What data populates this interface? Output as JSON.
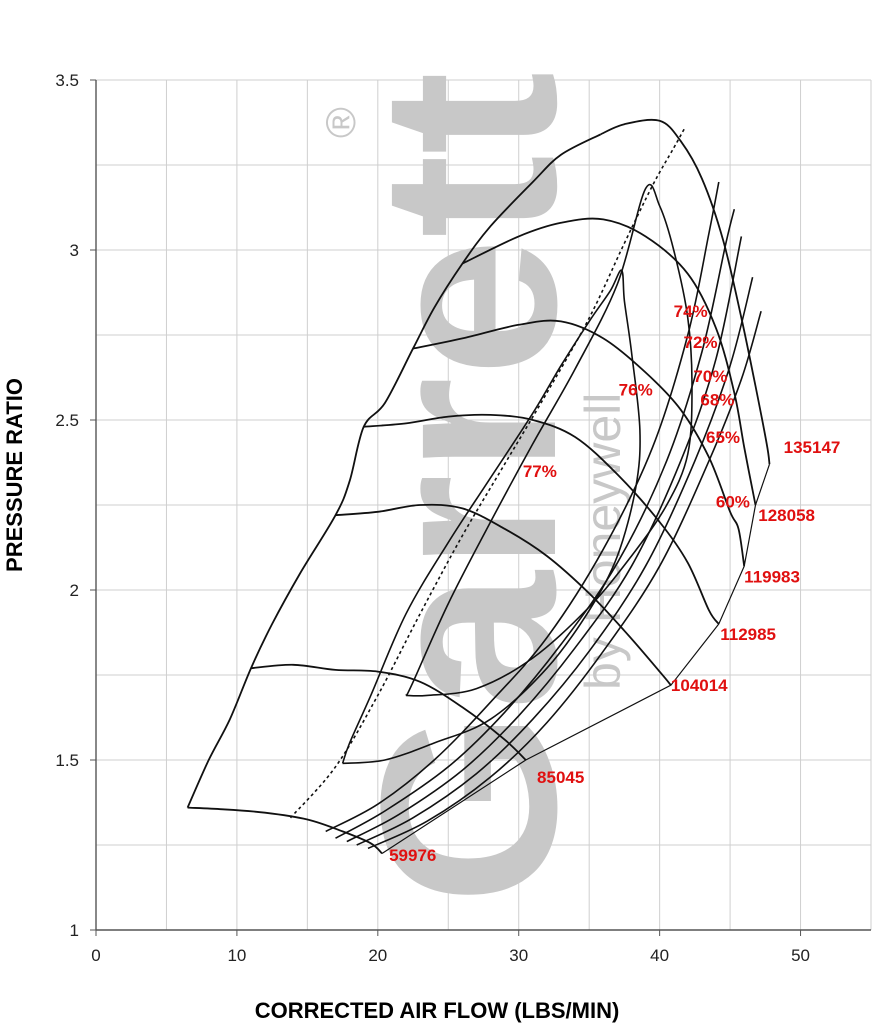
{
  "chart_data": {
    "type": "line",
    "title": "",
    "xlabel": "CORRECTED AIR FLOW (LBS/MIN)",
    "ylabel": "PRESSURE RATIO",
    "xlim": [
      0,
      55
    ],
    "ylim": [
      1,
      3.5
    ],
    "x_ticks": [
      0,
      10,
      20,
      30,
      40,
      50
    ],
    "y_ticks": [
      1,
      1.5,
      2,
      2.5,
      3,
      3.5
    ],
    "x_tick_labels": [
      "0",
      "10",
      "20",
      "30",
      "40",
      "50"
    ],
    "y_tick_labels": [
      "1",
      "1.5",
      "2",
      "2.5",
      "3",
      "3.5"
    ],
    "grid": true,
    "watermark": {
      "brand": "Garrett",
      "sub": "by Honeywell",
      "mark": "®"
    },
    "speed_lines": [
      {
        "name": "59976",
        "points": [
          [
            6.5,
            1.36
          ],
          [
            9,
            1.355
          ],
          [
            12,
            1.345
          ],
          [
            15,
            1.325
          ],
          [
            17.5,
            1.29
          ],
          [
            19.5,
            1.255
          ],
          [
            20.3,
            1.225
          ]
        ]
      },
      {
        "name": "85045",
        "points": [
          [
            11,
            1.77
          ],
          [
            14,
            1.78
          ],
          [
            17,
            1.765
          ],
          [
            20,
            1.76
          ],
          [
            23,
            1.73
          ],
          [
            26,
            1.655
          ],
          [
            29,
            1.56
          ],
          [
            30.5,
            1.5
          ]
        ]
      },
      {
        "name": "104014",
        "points": [
          [
            17,
            2.22
          ],
          [
            20,
            2.23
          ],
          [
            23,
            2.25
          ],
          [
            26,
            2.24
          ],
          [
            29,
            2.18
          ],
          [
            32,
            2.1
          ],
          [
            35,
            1.99
          ],
          [
            37.5,
            1.88
          ],
          [
            40,
            1.76
          ],
          [
            40.8,
            1.72
          ]
        ]
      },
      {
        "name": "112985",
        "points": [
          [
            19,
            2.48
          ],
          [
            22,
            2.49
          ],
          [
            25,
            2.51
          ],
          [
            28,
            2.515
          ],
          [
            31,
            2.5
          ],
          [
            34,
            2.45
          ],
          [
            37,
            2.34
          ],
          [
            40,
            2.2
          ],
          [
            42,
            2.08
          ],
          [
            43.5,
            1.94
          ],
          [
            44.2,
            1.9
          ]
        ]
      },
      {
        "name": "119983",
        "points": [
          [
            22.5,
            2.71
          ],
          [
            26,
            2.74
          ],
          [
            30,
            2.78
          ],
          [
            33,
            2.79
          ],
          [
            36,
            2.74
          ],
          [
            39,
            2.64
          ],
          [
            41.5,
            2.53
          ],
          [
            43.5,
            2.39
          ],
          [
            45,
            2.23
          ],
          [
            45.6,
            2.18
          ],
          [
            46,
            2.07
          ]
        ]
      },
      {
        "name": "128058",
        "points": [
          [
            26,
            2.96
          ],
          [
            30,
            3.04
          ],
          [
            33,
            3.08
          ],
          [
            36,
            3.09
          ],
          [
            39,
            3.04
          ],
          [
            42,
            2.93
          ],
          [
            44,
            2.77
          ],
          [
            45.3,
            2.58
          ],
          [
            46,
            2.42
          ],
          [
            46.8,
            2.25
          ]
        ]
      },
      {
        "name": "135147",
        "points": [
          [
            35.8,
            3.34
          ],
          [
            37.5,
            3.37
          ],
          [
            40,
            3.38
          ],
          [
            41.5,
            3.32
          ],
          [
            43,
            3.21
          ],
          [
            44.5,
            3.03
          ],
          [
            45.8,
            2.8
          ],
          [
            46.8,
            2.6
          ],
          [
            47.6,
            2.43
          ],
          [
            47.8,
            2.37
          ]
        ]
      }
    ],
    "surge_line": [
      [
        6.5,
        1.36
      ],
      [
        8,
        1.5
      ],
      [
        9.5,
        1.62
      ],
      [
        11,
        1.77
      ],
      [
        12.5,
        1.9
      ],
      [
        14.5,
        2.05
      ],
      [
        17,
        2.22
      ],
      [
        18,
        2.32
      ],
      [
        19,
        2.48
      ],
      [
        20.5,
        2.55
      ],
      [
        22.5,
        2.71
      ],
      [
        24,
        2.83
      ],
      [
        26,
        2.96
      ],
      [
        28,
        3.07
      ],
      [
        31,
        3.2
      ],
      [
        33,
        3.28
      ],
      [
        35.8,
        3.34
      ]
    ],
    "choke_ends": [
      [
        20.3,
        1.225
      ],
      [
        30.5,
        1.5
      ],
      [
        40.8,
        1.72
      ],
      [
        44.2,
        1.9
      ],
      [
        46,
        2.07
      ],
      [
        46.8,
        2.25
      ],
      [
        47.8,
        2.37
      ]
    ],
    "efficiency_islands": [
      {
        "name": "77%",
        "dashed": true,
        "points": [
          [
            13.8,
            1.33
          ],
          [
            17,
            1.48
          ],
          [
            20,
            1.69
          ],
          [
            23,
            1.93
          ],
          [
            26,
            2.16
          ],
          [
            29,
            2.37
          ],
          [
            32,
            2.58
          ],
          [
            35,
            2.8
          ],
          [
            37.5,
            3.02
          ],
          [
            39.5,
            3.19
          ],
          [
            41,
            3.3
          ],
          [
            41.8,
            3.36
          ]
        ]
      },
      {
        "name": "76%",
        "dashed": false,
        "points": [
          [
            17.5,
            1.49
          ],
          [
            18,
            1.55
          ],
          [
            19.5,
            1.69
          ],
          [
            22,
            1.93
          ],
          [
            25,
            2.14
          ],
          [
            28,
            2.33
          ],
          [
            31,
            2.52
          ],
          [
            33,
            2.66
          ],
          [
            35,
            2.79
          ],
          [
            36.5,
            2.88
          ],
          [
            37.3,
            2.94
          ],
          [
            37.5,
            2.85
          ],
          [
            38,
            2.7
          ],
          [
            38.6,
            2.47
          ],
          [
            38.3,
            2.3
          ],
          [
            37,
            2.1
          ],
          [
            35,
            1.94
          ],
          [
            32,
            1.77
          ],
          [
            28,
            1.62
          ],
          [
            24,
            1.55
          ],
          [
            20.5,
            1.5
          ],
          [
            17.5,
            1.49
          ]
        ]
      },
      {
        "name": "74%",
        "dashed": false,
        "points": [
          [
            22,
            1.69
          ],
          [
            22.4,
            1.72
          ],
          [
            25,
            1.96
          ],
          [
            28,
            2.2
          ],
          [
            31,
            2.43
          ],
          [
            34,
            2.65
          ],
          [
            37,
            2.9
          ],
          [
            39,
            3.18
          ],
          [
            40,
            3.13
          ],
          [
            41,
            3.0
          ],
          [
            42,
            2.8
          ],
          [
            42.3,
            2.6
          ],
          [
            42,
            2.4
          ],
          [
            40.5,
            2.25
          ],
          [
            38,
            2.1
          ],
          [
            35,
            1.95
          ],
          [
            31,
            1.8
          ],
          [
            27,
            1.71
          ],
          [
            23.5,
            1.69
          ],
          [
            22,
            1.69
          ]
        ]
      },
      {
        "name": "72%",
        "dashed": false,
        "points": [
          [
            16.3,
            1.29
          ],
          [
            20,
            1.37
          ],
          [
            24,
            1.5
          ],
          [
            28,
            1.67
          ],
          [
            32,
            1.86
          ],
          [
            36,
            2.12
          ],
          [
            39.5,
            2.42
          ],
          [
            42,
            2.75
          ],
          [
            43.5,
            3.05
          ],
          [
            44.2,
            3.2
          ]
        ]
      },
      {
        "name": "70%",
        "dashed": false,
        "points": [
          [
            17,
            1.27
          ],
          [
            20.5,
            1.35
          ],
          [
            25,
            1.48
          ],
          [
            29,
            1.64
          ],
          [
            33,
            1.84
          ],
          [
            37,
            2.08
          ],
          [
            40.5,
            2.38
          ],
          [
            43,
            2.7
          ],
          [
            44.7,
            3.02
          ],
          [
            45.3,
            3.12
          ]
        ]
      },
      {
        "name": "68%",
        "dashed": false,
        "points": [
          [
            17.8,
            1.26
          ],
          [
            21.5,
            1.34
          ],
          [
            26,
            1.47
          ],
          [
            30,
            1.63
          ],
          [
            34,
            1.83
          ],
          [
            38,
            2.07
          ],
          [
            41.5,
            2.38
          ],
          [
            44,
            2.68
          ],
          [
            45.8,
            3.04
          ]
        ]
      },
      {
        "name": "65%",
        "dashed": false,
        "points": [
          [
            18.5,
            1.25
          ],
          [
            22.5,
            1.33
          ],
          [
            27,
            1.46
          ],
          [
            31,
            1.62
          ],
          [
            35,
            1.82
          ],
          [
            39,
            2.07
          ],
          [
            42.5,
            2.38
          ],
          [
            45,
            2.66
          ],
          [
            46.6,
            2.92
          ]
        ]
      },
      {
        "name": "60%",
        "dashed": false,
        "points": [
          [
            19.3,
            1.24
          ],
          [
            23.5,
            1.32
          ],
          [
            28,
            1.45
          ],
          [
            32,
            1.61
          ],
          [
            36,
            1.82
          ],
          [
            40,
            2.07
          ],
          [
            43.5,
            2.38
          ],
          [
            45.8,
            2.62
          ],
          [
            47.2,
            2.82
          ]
        ]
      }
    ],
    "speed_label_pos": [
      {
        "name": "59976",
        "x": 20.8,
        "y": 1.22
      },
      {
        "name": "85045",
        "x": 31.3,
        "y": 1.45
      },
      {
        "name": "104014",
        "x": 40.8,
        "y": 1.72
      },
      {
        "name": "112985",
        "x": 44.3,
        "y": 1.87
      },
      {
        "name": "119983",
        "x": 46,
        "y": 2.04
      },
      {
        "name": "128058",
        "x": 47,
        "y": 2.22
      },
      {
        "name": "135147",
        "x": 48.8,
        "y": 2.42
      }
    ],
    "eff_label_pos": [
      {
        "name": "77%",
        "x": 31.5,
        "y": 2.35
      },
      {
        "name": "76%",
        "x": 38.3,
        "y": 2.59
      },
      {
        "name": "74%",
        "x": 42.2,
        "y": 2.82
      },
      {
        "name": "72%",
        "x": 42.9,
        "y": 2.73
      },
      {
        "name": "70%",
        "x": 43.6,
        "y": 2.63
      },
      {
        "name": "68%",
        "x": 44.1,
        "y": 2.56
      },
      {
        "name": "65%",
        "x": 44.5,
        "y": 2.45
      },
      {
        "name": "60%",
        "x": 45.2,
        "y": 2.26
      }
    ]
  }
}
